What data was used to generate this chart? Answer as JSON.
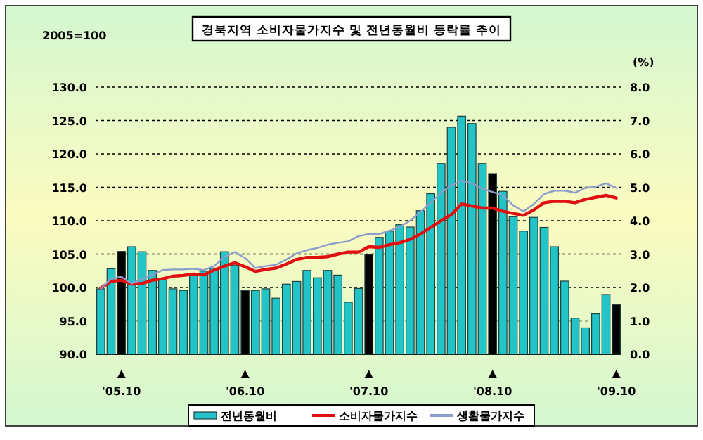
{
  "chart_data": {
    "type": "bar",
    "title": "경북지역 소비자물가지수 및 전년동월비 등락률 추이",
    "ylabel": "2005=100",
    "y2label": "(%)",
    "categories": [
      null,
      null,
      "'05.10",
      null,
      null,
      null,
      null,
      null,
      null,
      null,
      null,
      null,
      null,
      null,
      "'06.10",
      null,
      null,
      null,
      null,
      null,
      null,
      null,
      null,
      null,
      null,
      null,
      "'07.10",
      null,
      null,
      null,
      null,
      null,
      null,
      null,
      null,
      null,
      null,
      null,
      "'08.10",
      null,
      null,
      null,
      null,
      null,
      null,
      null,
      null,
      null,
      null,
      null,
      "'09.10"
    ],
    "series": [
      {
        "name": "전년동월비",
        "type": "bar",
        "axis": "y2",
        "colors": [
          "#22c4c8",
          "#22c4c8",
          "#000000",
          "#22c4c8",
          "#22c4c8",
          "#22c4c8",
          "#22c4c8",
          "#22c4c8",
          "#22c4c8",
          "#22c4c8",
          "#22c4c8",
          "#22c4c8",
          "#22c4c8",
          "#22c4c8",
          "#000000",
          "#22c4c8",
          "#22c4c8",
          "#22c4c8",
          "#22c4c8",
          "#22c4c8",
          "#22c4c8",
          "#22c4c8",
          "#22c4c8",
          "#22c4c8",
          "#22c4c8",
          "#22c4c8",
          "#000000",
          "#22c4c8",
          "#22c4c8",
          "#22c4c8",
          "#22c4c8",
          "#22c4c8",
          "#22c4c8",
          "#22c4c8",
          "#22c4c8",
          "#22c4c8",
          "#22c4c8",
          "#22c4c8",
          "#000000",
          "#22c4c8",
          "#22c4c8",
          "#22c4c8",
          "#22c4c8",
          "#22c4c8",
          "#22c4c8",
          "#22c4c8",
          "#22c4c8",
          "#22c4c8",
          "#22c4c8",
          "#22c4c8",
          "#000000"
        ],
        "values": [
          1.96,
          2.56,
          3.08,
          3.22,
          3.07,
          2.51,
          2.23,
          1.96,
          1.91,
          2.37,
          2.49,
          2.58,
          3.07,
          2.67,
          1.91,
          1.91,
          1.96,
          1.68,
          2.1,
          2.18,
          2.51,
          2.29,
          2.51,
          2.37,
          1.56,
          1.97,
          2.99,
          3.5,
          3.69,
          3.88,
          3.81,
          4.3,
          4.81,
          5.71,
          6.8,
          7.13,
          6.91,
          5.71,
          5.41,
          4.88,
          4.12,
          3.69,
          4.1,
          3.8,
          3.22,
          2.19,
          1.08,
          0.79,
          1.21,
          1.79,
          1.49
        ]
      },
      {
        "name": "소비자물가지수",
        "type": "line",
        "color": "#e01010",
        "values": [
          99.9,
          100.9,
          101.1,
          100.5,
          100.6,
          101.1,
          101.3,
          101.7,
          101.8,
          102.0,
          101.9,
          102.6,
          103.2,
          103.7,
          103.1,
          102.4,
          102.7,
          102.9,
          103.5,
          104.2,
          104.5,
          104.5,
          104.6,
          105.0,
          105.3,
          105.3,
          106.1,
          106.0,
          106.4,
          106.7,
          107.2,
          108.0,
          109.0,
          110.0,
          110.9,
          112.5,
          112.2,
          111.9,
          111.9,
          111.4,
          111.1,
          110.8,
          111.6,
          112.7,
          112.9,
          112.9,
          112.7,
          113.2,
          113.5,
          113.8,
          113.4
        ]
      },
      {
        "name": "생활물가지수",
        "type": "line",
        "color": "#8c9ccc",
        "values": [
          99.8,
          101.3,
          101.6,
          100.6,
          101.3,
          101.9,
          102.6,
          102.7,
          102.7,
          102.8,
          102.6,
          103.2,
          104.6,
          105.3,
          104.4,
          102.9,
          103.2,
          103.4,
          104.2,
          105.1,
          105.6,
          105.9,
          106.4,
          106.7,
          106.9,
          107.7,
          108.0,
          108.0,
          108.5,
          109.1,
          110.0,
          111.3,
          112.7,
          114.2,
          115.3,
          116.0,
          115.6,
          114.8,
          114.3,
          113.8,
          112.3,
          111.4,
          112.5,
          114.0,
          114.5,
          114.5,
          114.2,
          114.9,
          115.1,
          115.6,
          114.9
        ]
      }
    ],
    "ylim": [
      90,
      130
    ],
    "yticks": [
      {
        "value": 90,
        "label": "90.0"
      },
      {
        "value": 95,
        "label": "95.0"
      },
      {
        "value": 100,
        "label": "100.0"
      },
      {
        "value": 105,
        "label": "105.0"
      },
      {
        "value": 110,
        "label": "110.0"
      },
      {
        "value": 115,
        "label": "115.0"
      },
      {
        "value": 120,
        "label": "120.0"
      },
      {
        "value": 125,
        "label": "125.0"
      },
      {
        "value": 130,
        "label": "130.0"
      }
    ],
    "y2lim": [
      0,
      8
    ],
    "y2ticks": [
      {
        "value": 0,
        "label": "0.0"
      },
      {
        "value": 1,
        "label": "1.0"
      },
      {
        "value": 2,
        "label": "2.0"
      },
      {
        "value": 3,
        "label": "3.0"
      },
      {
        "value": 4,
        "label": "4.0"
      },
      {
        "value": 5,
        "label": "5.0"
      },
      {
        "value": 6,
        "label": "6.0"
      },
      {
        "value": 7,
        "label": "7.0"
      },
      {
        "value": 8,
        "label": "8.0"
      }
    ],
    "grid": "y",
    "legend": "bottom"
  }
}
